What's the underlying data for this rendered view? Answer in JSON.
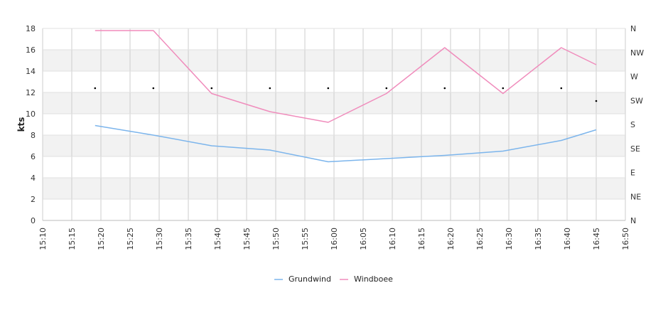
{
  "chart_data": {
    "type": "line",
    "ylabel": "kts",
    "ylim": [
      0,
      18
    ],
    "yticks": [
      0,
      2,
      4,
      6,
      8,
      10,
      12,
      14,
      16,
      18
    ],
    "y2_ticks": [
      "N",
      "NE",
      "E",
      "SE",
      "S",
      "SW",
      "W",
      "NW",
      "N"
    ],
    "xlim": [
      "15:10",
      "16:50"
    ],
    "xticks": [
      "15:10",
      "15:15",
      "15:20",
      "15:25",
      "15:30",
      "15:35",
      "15:40",
      "15:45",
      "15:50",
      "15:55",
      "16:00",
      "16:05",
      "16:10",
      "16:15",
      "16:20",
      "16:25",
      "16:30",
      "16:35",
      "16:40",
      "16:45",
      "16:50"
    ],
    "grid": true,
    "band_fill": "#f2f2f2",
    "grid_color": "#cccccc",
    "legend_position": "bottom-center",
    "series": [
      {
        "name": "Grundwind",
        "color": "#7cb5ec",
        "x": [
          "15:19",
          "15:29",
          "15:39",
          "15:49",
          "15:59",
          "16:09",
          "16:19",
          "16:29",
          "16:39",
          "16:45"
        ],
        "values": [
          8.9,
          8.0,
          7.0,
          6.6,
          5.5,
          5.8,
          6.1,
          6.5,
          7.5,
          8.5
        ]
      },
      {
        "name": "Windboee",
        "color": "#f08cbc",
        "x": [
          "15:19",
          "15:29",
          "15:39",
          "15:49",
          "15:59",
          "16:09",
          "16:19",
          "16:29",
          "16:39",
          "16:45"
        ],
        "values": [
          17.8,
          17.8,
          11.9,
          10.2,
          9.2,
          11.9,
          16.2,
          11.9,
          16.2,
          14.6
        ]
      },
      {
        "name": "",
        "type": "scatter",
        "color": "#000000",
        "x": [
          "15:19",
          "15:29",
          "15:39",
          "15:49",
          "15:59",
          "16:09",
          "16:19",
          "16:29",
          "16:39",
          "16:45"
        ],
        "values": [
          12.4,
          12.4,
          12.4,
          12.4,
          12.4,
          12.4,
          12.4,
          12.4,
          12.4,
          11.2
        ]
      }
    ]
  }
}
